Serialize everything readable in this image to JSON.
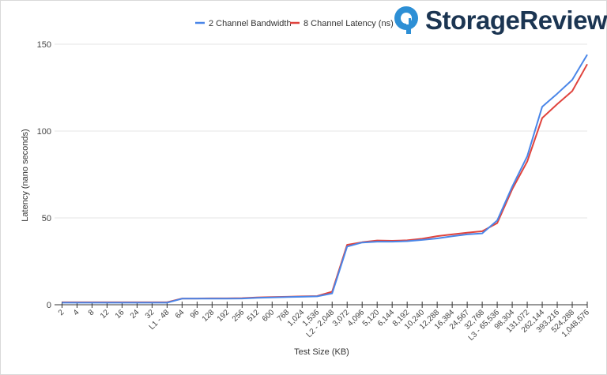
{
  "brand": {
    "name": "StorageReview",
    "icon": "storagereview-logo-icon",
    "color": "#1b3552",
    "icon_color": "#2d8fd5"
  },
  "chart_data": {
    "type": "line",
    "xlabel": "Test Size (KB)",
    "ylabel": "Latency (nano seconds)",
    "ylim": [
      0,
      150
    ],
    "yticks": [
      0,
      50,
      100,
      150
    ],
    "grid": "horizontal",
    "legend_position": "top",
    "categories": [
      "2",
      "4",
      "8",
      "12",
      "16",
      "24",
      "32",
      "L1 - 48",
      "64",
      "96",
      "128",
      "192",
      "256",
      "512",
      "600",
      "768",
      "1,024",
      "1,536",
      "L2 - 2,048",
      "3,072",
      "4,096",
      "5,120",
      "6,144",
      "8,192",
      "10,240",
      "12,288",
      "16,384",
      "24,567",
      "32,768",
      "L3 - 65,536",
      "98,304",
      "131,072",
      "262,144",
      "393,216",
      "524,288",
      "1,048,576"
    ],
    "series": [
      {
        "name": "2 Channel Bandwidth",
        "color": "#4a86e8",
        "values": [
          1.2,
          1.2,
          1.2,
          1.2,
          1.2,
          1.2,
          1.2,
          1.2,
          3.5,
          3.5,
          3.5,
          3.5,
          3.6,
          4.0,
          4.2,
          4.4,
          4.6,
          4.8,
          6.5,
          33.5,
          35.8,
          36.3,
          36.3,
          36.6,
          37.3,
          38.2,
          39.4,
          40.5,
          41.1,
          48.5,
          68.0,
          85.5,
          114.0,
          121.5,
          129.5,
          144.0
        ]
      },
      {
        "name": "8 Channel Latency (ns)",
        "color": "#e0443e",
        "values": [
          1.4,
          1.4,
          1.4,
          1.4,
          1.4,
          1.4,
          1.4,
          1.4,
          3.6,
          3.6,
          3.7,
          3.7,
          3.8,
          4.2,
          4.4,
          4.6,
          4.8,
          5.0,
          7.5,
          34.5,
          36.0,
          37.0,
          36.8,
          37.1,
          38.0,
          39.5,
          40.5,
          41.5,
          42.3,
          47.0,
          66.5,
          82.5,
          107.5,
          115.5,
          123.0,
          138.5
        ]
      }
    ]
  }
}
